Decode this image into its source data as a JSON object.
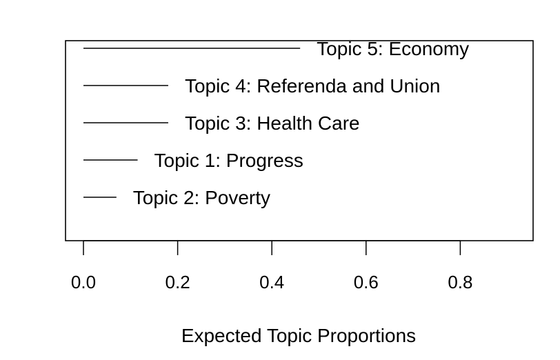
{
  "chart_data": {
    "type": "bar",
    "orientation": "horizontal",
    "title": "",
    "xlabel": "Expected Topic Proportions",
    "ylabel": "",
    "xlim": [
      0,
      0.9
    ],
    "xticks": [
      0.0,
      0.2,
      0.4,
      0.6,
      0.8
    ],
    "xtick_labels": [
      "0.0",
      "0.2",
      "0.4",
      "0.6",
      "0.8"
    ],
    "grid": false,
    "categories": [
      "Topic 5: Economy",
      "Topic 4:  Referenda and Union",
      "Topic 3: Health Care",
      "Topic 1: Progress",
      "Topic 2: Poverty"
    ],
    "values": [
      0.46,
      0.18,
      0.18,
      0.115,
      0.07
    ],
    "colors": {
      "line": "#000000",
      "text": "#000000",
      "background": "#ffffff"
    }
  }
}
